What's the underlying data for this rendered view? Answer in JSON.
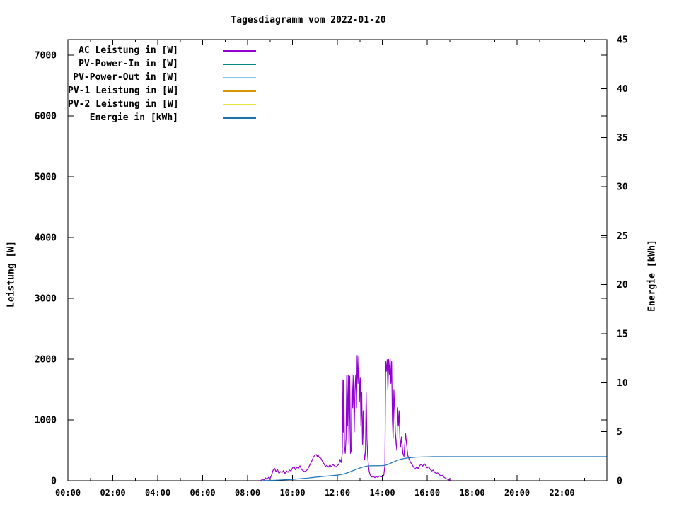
{
  "title": "Tagesdiagramm vom 2022-01-20",
  "axes": {
    "y1": {
      "label": "Leistung [W]",
      "ticks": [
        0,
        1000,
        2000,
        3000,
        4000,
        5000,
        6000,
        7000
      ],
      "range": [
        0,
        7256
      ]
    },
    "y2": {
      "label": "Energie [kWh]",
      "ticks": [
        0,
        5,
        10,
        15,
        20,
        25,
        30,
        35,
        40,
        45
      ],
      "range": [
        0,
        45
      ]
    },
    "x": {
      "major_tick_labels": [
        "00:00",
        "02:00",
        "04:00",
        "06:00",
        "08:00",
        "10:00",
        "12:00",
        "14:00",
        "16:00",
        "18:00",
        "20:00",
        "22:00"
      ],
      "major_step_hours": 2,
      "minor_step_hours": 1,
      "range_hours": [
        0,
        24
      ]
    }
  },
  "legend": {
    "entries": [
      {
        "label": "AC Leistung in [W]",
        "color": "#9400D3"
      },
      {
        "label": "PV-Power-In in [W]",
        "color": "#008B8B"
      },
      {
        "label": "PV-Power-Out in [W]",
        "color": "#7EC5E8"
      },
      {
        "label": "PV-1 Leistung in [W]",
        "color": "#DB9500"
      },
      {
        "label": "PV-2 Leistung in [W]",
        "color": "#EDE13C"
      },
      {
        "label": "Energie in [kWh]",
        "color": "#1A72B5"
      }
    ]
  },
  "chart_data": {
    "type": "line",
    "title": "Tagesdiagramm vom 2022-01-20",
    "xlabel": "",
    "ylabel": "Leistung [W]",
    "y2label": "Energie [kWh]",
    "x_axis": "time of day, 00:00 - 24:00, labeled every 2 h, minor ticks every 1 h",
    "y1_range": [
      0,
      7256
    ],
    "y2_range": [
      0,
      45
    ],
    "grid": false,
    "legend_position": "top-left inside",
    "series": [
      {
        "name": "AC Leistung in [W]",
        "color": "#9400D3",
        "axis": "y1",
        "points": [
          [
            "08:35",
            0
          ],
          [
            "08:40",
            25
          ],
          [
            "08:44",
            10
          ],
          [
            "08:48",
            45
          ],
          [
            "08:52",
            20
          ],
          [
            "08:56",
            55
          ],
          [
            "09:00",
            40
          ],
          [
            "09:04",
            90
          ],
          [
            "09:08",
            170
          ],
          [
            "09:12",
            205
          ],
          [
            "09:16",
            150
          ],
          [
            "09:20",
            185
          ],
          [
            "09:24",
            120
          ],
          [
            "09:28",
            150
          ],
          [
            "09:32",
            135
          ],
          [
            "09:36",
            165
          ],
          [
            "09:40",
            120
          ],
          [
            "09:44",
            160
          ],
          [
            "09:48",
            140
          ],
          [
            "09:52",
            175
          ],
          [
            "09:56",
            160
          ],
          [
            "10:00",
            210
          ],
          [
            "10:04",
            235
          ],
          [
            "10:08",
            180
          ],
          [
            "10:12",
            225
          ],
          [
            "10:16",
            205
          ],
          [
            "10:20",
            245
          ],
          [
            "10:24",
            190
          ],
          [
            "10:28",
            165
          ],
          [
            "10:32",
            150
          ],
          [
            "10:36",
            160
          ],
          [
            "10:40",
            185
          ],
          [
            "10:44",
            230
          ],
          [
            "10:48",
            280
          ],
          [
            "10:52",
            330
          ],
          [
            "10:56",
            390
          ],
          [
            "11:00",
            420
          ],
          [
            "11:04",
            430
          ],
          [
            "11:06",
            400
          ],
          [
            "11:08",
            425
          ],
          [
            "11:12",
            380
          ],
          [
            "11:16",
            370
          ],
          [
            "11:20",
            320
          ],
          [
            "11:24",
            280
          ],
          [
            "11:28",
            235
          ],
          [
            "11:32",
            255
          ],
          [
            "11:36",
            225
          ],
          [
            "11:40",
            260
          ],
          [
            "11:44",
            230
          ],
          [
            "11:48",
            270
          ],
          [
            "11:52",
            245
          ],
          [
            "11:56",
            225
          ],
          [
            "12:00",
            250
          ],
          [
            "12:04",
            270
          ],
          [
            "12:07",
            350
          ],
          [
            "12:10",
            300
          ],
          [
            "12:13",
            450
          ],
          [
            "12:15",
            1660
          ],
          [
            "12:16",
            800
          ],
          [
            "12:17",
            1650
          ],
          [
            "12:19",
            550
          ],
          [
            "12:21",
            450
          ],
          [
            "12:23",
            700
          ],
          [
            "12:25",
            1730
          ],
          [
            "12:27",
            900
          ],
          [
            "12:29",
            1740
          ],
          [
            "12:31",
            600
          ],
          [
            "12:33",
            1720
          ],
          [
            "12:35",
            450
          ],
          [
            "12:37",
            500
          ],
          [
            "12:39",
            1750
          ],
          [
            "12:41",
            1200
          ],
          [
            "12:43",
            1730
          ],
          [
            "12:45",
            800
          ],
          [
            "12:47",
            1500
          ],
          [
            "12:49",
            1740
          ],
          [
            "12:51",
            1200
          ],
          [
            "12:53",
            2060
          ],
          [
            "12:55",
            1600
          ],
          [
            "12:57",
            2040
          ],
          [
            "12:59",
            1300
          ],
          [
            "13:01",
            1700
          ],
          [
            "13:03",
            900
          ],
          [
            "13:05",
            1450
          ],
          [
            "13:07",
            600
          ],
          [
            "13:09",
            1150
          ],
          [
            "13:11",
            450
          ],
          [
            "13:13",
            350
          ],
          [
            "13:15",
            500
          ],
          [
            "13:17",
            1450
          ],
          [
            "13:19",
            700
          ],
          [
            "13:21",
            400
          ],
          [
            "13:23",
            250
          ],
          [
            "13:25",
            150
          ],
          [
            "13:28",
            90
          ],
          [
            "13:32",
            60
          ],
          [
            "13:36",
            75
          ],
          [
            "13:40",
            50
          ],
          [
            "13:44",
            70
          ],
          [
            "13:48",
            55
          ],
          [
            "13:52",
            80
          ],
          [
            "13:56",
            60
          ],
          [
            "14:00",
            70
          ],
          [
            "14:04",
            90
          ],
          [
            "14:07",
            250
          ],
          [
            "14:09",
            1960
          ],
          [
            "14:11",
            1800
          ],
          [
            "14:13",
            1990
          ],
          [
            "14:15",
            1500
          ],
          [
            "14:17",
            1995
          ],
          [
            "14:19",
            1750
          ],
          [
            "14:21",
            2000
          ],
          [
            "14:23",
            1600
          ],
          [
            "14:25",
            1960
          ],
          [
            "14:27",
            1000
          ],
          [
            "14:29",
            700
          ],
          [
            "14:31",
            1500
          ],
          [
            "14:33",
            1150
          ],
          [
            "14:35",
            800
          ],
          [
            "14:37",
            600
          ],
          [
            "14:39",
            500
          ],
          [
            "14:41",
            1200
          ],
          [
            "14:43",
            900
          ],
          [
            "14:45",
            1150
          ],
          [
            "14:47",
            700
          ],
          [
            "14:49",
            550
          ],
          [
            "14:51",
            720
          ],
          [
            "14:53",
            600
          ],
          [
            "14:55",
            450
          ],
          [
            "14:58",
            400
          ],
          [
            "15:02",
            780
          ],
          [
            "15:05",
            600
          ],
          [
            "15:08",
            420
          ],
          [
            "15:12",
            350
          ],
          [
            "15:16",
            300
          ],
          [
            "15:20",
            260
          ],
          [
            "15:24",
            220
          ],
          [
            "15:28",
            190
          ],
          [
            "15:32",
            230
          ],
          [
            "15:36",
            200
          ],
          [
            "15:40",
            250
          ],
          [
            "15:44",
            270
          ],
          [
            "15:48",
            240
          ],
          [
            "15:52",
            280
          ],
          [
            "15:56",
            250
          ],
          [
            "16:00",
            210
          ],
          [
            "16:04",
            230
          ],
          [
            "16:08",
            190
          ],
          [
            "16:12",
            160
          ],
          [
            "16:16",
            175
          ],
          [
            "16:20",
            140
          ],
          [
            "16:24",
            120
          ],
          [
            "16:28",
            130
          ],
          [
            "16:32",
            100
          ],
          [
            "16:36",
            80
          ],
          [
            "16:40",
            90
          ],
          [
            "16:44",
            60
          ],
          [
            "16:48",
            45
          ],
          [
            "16:52",
            30
          ],
          [
            "16:56",
            20
          ],
          [
            "17:00",
            10
          ],
          [
            "17:04",
            0
          ]
        ]
      },
      {
        "name": "PV-Power-In in [W]",
        "color": "#008B8B",
        "axis": "y1",
        "points": []
      },
      {
        "name": "PV-Power-Out in [W]",
        "color": "#7EC5E8",
        "axis": "y1",
        "points": []
      },
      {
        "name": "PV-1 Leistung in [W]",
        "color": "#DB9500",
        "axis": "y1",
        "points": []
      },
      {
        "name": "PV-2 Leistung in [W]",
        "color": "#EDE13C",
        "axis": "y1",
        "points": []
      },
      {
        "name": "Energie in [kWh]",
        "color": "#1A72B5",
        "axis": "y2",
        "points": [
          [
            "08:40",
            0
          ],
          [
            "09:00",
            0.03
          ],
          [
            "09:20",
            0.06
          ],
          [
            "09:40",
            0.1
          ],
          [
            "10:00",
            0.14
          ],
          [
            "10:20",
            0.2
          ],
          [
            "10:40",
            0.27
          ],
          [
            "11:00",
            0.35
          ],
          [
            "11:20",
            0.43
          ],
          [
            "11:40",
            0.5
          ],
          [
            "12:00",
            0.57
          ],
          [
            "12:10",
            0.63
          ],
          [
            "12:20",
            0.72
          ],
          [
            "12:30",
            0.85
          ],
          [
            "12:40",
            1.0
          ],
          [
            "12:50",
            1.15
          ],
          [
            "13:00",
            1.3
          ],
          [
            "13:10",
            1.42
          ],
          [
            "13:20",
            1.5
          ],
          [
            "13:30",
            1.52
          ],
          [
            "14:00",
            1.54
          ],
          [
            "14:08",
            1.57
          ],
          [
            "14:16",
            1.68
          ],
          [
            "14:24",
            1.82
          ],
          [
            "14:32",
            1.95
          ],
          [
            "14:40",
            2.08
          ],
          [
            "14:50",
            2.2
          ],
          [
            "15:00",
            2.28
          ],
          [
            "15:10",
            2.33
          ],
          [
            "15:20",
            2.37
          ],
          [
            "15:30",
            2.4
          ],
          [
            "15:45",
            2.43
          ],
          [
            "16:00",
            2.44
          ],
          [
            "16:15",
            2.45
          ],
          [
            "17:00",
            2.45
          ],
          [
            "18:00",
            2.45
          ],
          [
            "20:00",
            2.45
          ],
          [
            "22:00",
            2.45
          ],
          [
            "23:59",
            2.45
          ]
        ]
      }
    ]
  }
}
